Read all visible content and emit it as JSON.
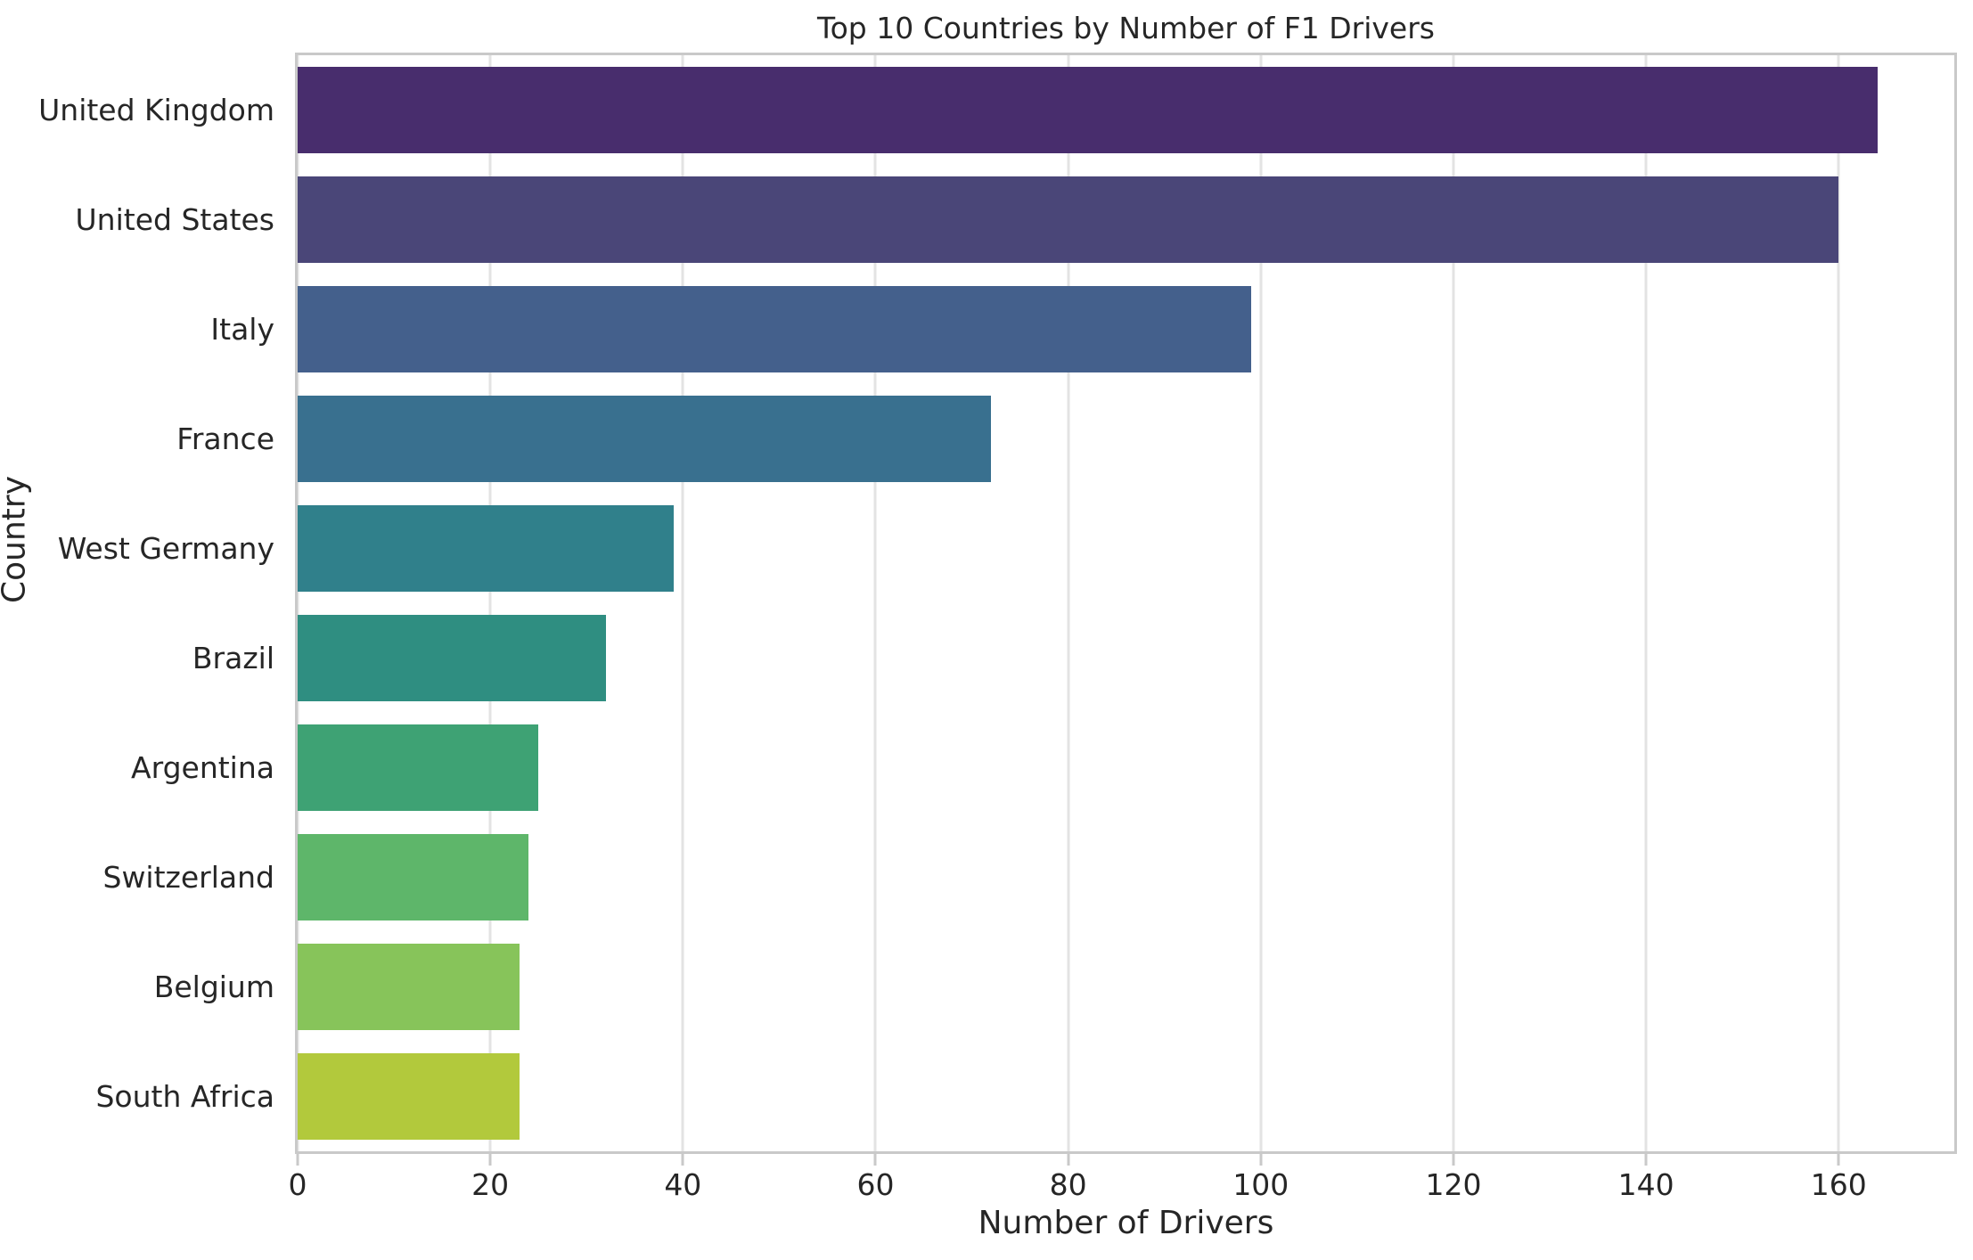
{
  "figure": {
    "title": "Top 10 Countries by Number of F1 Drivers",
    "xlabel": "Number of Drivers",
    "ylabel": "Country"
  },
  "chart_data": {
    "type": "bar",
    "orientation": "horizontal",
    "title": "Top 10 Countries by Number of F1 Drivers",
    "xlabel": "Number of Drivers",
    "ylabel": "Country",
    "categories": [
      "United Kingdom",
      "United States",
      "Italy",
      "France",
      "West Germany",
      "Brazil",
      "Argentina",
      "Switzerland",
      "Belgium",
      "South Africa"
    ],
    "values": [
      164,
      160,
      99,
      72,
      39,
      32,
      25,
      24,
      23,
      23
    ],
    "bar_colors": [
      "#482d6d",
      "#4a4678",
      "#44608c",
      "#39708f",
      "#30808b",
      "#2f8e81",
      "#3ea274",
      "#5eb66a",
      "#87c45a",
      "#b2c93c"
    ],
    "xticks": [
      0,
      20,
      40,
      60,
      80,
      100,
      120,
      140,
      160
    ],
    "xlim": [
      0,
      172
    ],
    "grid": "vertical-only",
    "legend": "none",
    "style": {
      "background_color": "#ffffff",
      "text_color": "#262626",
      "grid_color": "#e3e3e3",
      "spine_color": "#c9c9c9",
      "palette": "viridis"
    }
  }
}
